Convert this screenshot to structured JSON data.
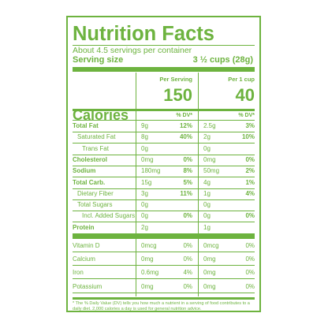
{
  "label": {
    "title": "Nutrition Facts",
    "servings_per_container": "About 4.5 servings per container",
    "serving_size_label": "Serving size",
    "serving_size_value": "3 ½ cups (28g)",
    "col1_header": "Per Serving",
    "col2_header": "Per 1 cup",
    "calories_label": "Calories",
    "calories_col1": "150",
    "calories_col2": "40",
    "dv_header": "% DV*",
    "rows": [
      {
        "label": "Total Fat",
        "amt1": "9g",
        "dv1": "12%",
        "amt2": "2.5g",
        "dv2": "3%"
      },
      {
        "label": "Saturated Fat",
        "amt1": "8g",
        "dv1": "40%",
        "amt2": "2g",
        "dv2": "10%"
      },
      {
        "label": "Trans Fat",
        "amt1": "0g",
        "dv1": "",
        "amt2": "0g",
        "dv2": ""
      },
      {
        "label": "Cholesterol",
        "amt1": "0mg",
        "dv1": "0%",
        "amt2": "0mg",
        "dv2": "0%"
      },
      {
        "label": "Sodium",
        "amt1": "180mg",
        "dv1": "8%",
        "amt2": "50mg",
        "dv2": "2%"
      },
      {
        "label": "Total Carb.",
        "amt1": "15g",
        "dv1": "5%",
        "amt2": "4g",
        "dv2": "1%"
      },
      {
        "label": "Dietary Fiber",
        "amt1": "3g",
        "dv1": "11%",
        "amt2": "1g",
        "dv2": "4%"
      },
      {
        "label": "Total Sugars",
        "amt1": "0g",
        "dv1": "",
        "amt2": "0g",
        "dv2": ""
      },
      {
        "label": "Incl. Added Sugars",
        "amt1": "0g",
        "dv1": "0%",
        "amt2": "0g",
        "dv2": "0%"
      },
      {
        "label": "Protein",
        "amt1": "2g",
        "dv1": "",
        "amt2": "1g",
        "dv2": ""
      }
    ],
    "vitamins": [
      {
        "label": "Vitamin D",
        "amt1": "0mcg",
        "dv1": "0%",
        "amt2": "0mcg",
        "dv2": "0%"
      },
      {
        "label": "Calcium",
        "amt1": "0mg",
        "dv1": "0%",
        "amt2": "0mg",
        "dv2": "0%"
      },
      {
        "label": "Iron",
        "amt1": "0.6mg",
        "dv1": "4%",
        "amt2": "0mg",
        "dv2": "0%"
      },
      {
        "label": "Potassium",
        "amt1": "0mg",
        "dv1": "0%",
        "amt2": "0mg",
        "dv2": "0%"
      }
    ],
    "footnote": "* The % Daily Value (DV) tells you how much a nutrient in a serving of food contributes to a daily diet. 2,000 calories a day is used for general nutrition advice.",
    "color": "#6db33f"
  }
}
